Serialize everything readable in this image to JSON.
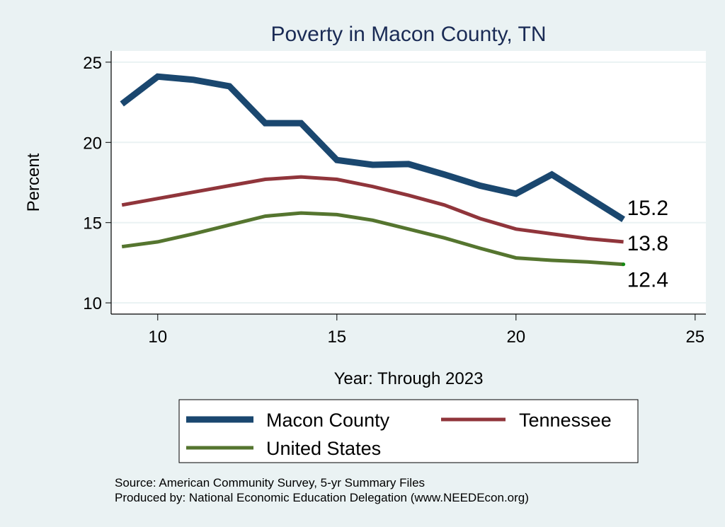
{
  "chart_data": {
    "type": "line",
    "title": "Poverty in Macon County, TN",
    "xlabel": "Year: Through 2023",
    "ylabel": "Percent",
    "xlim": [
      8.7,
      25.3
    ],
    "ylim": [
      9.3,
      25.7
    ],
    "xticks": [
      10,
      15,
      20,
      25
    ],
    "yticks": [
      10,
      15,
      20,
      25
    ],
    "grid": true,
    "legend_position": "bottom",
    "x": [
      9,
      10,
      11,
      12,
      13,
      14,
      15,
      16,
      17,
      18,
      19,
      20,
      21,
      22,
      23
    ],
    "series": [
      {
        "name": "Macon County",
        "color": "#1a476f",
        "values": [
          22.4,
          24.1,
          23.9,
          23.5,
          21.2,
          21.2,
          18.9,
          18.6,
          18.65,
          18.0,
          17.3,
          16.8,
          18.0,
          16.6,
          15.2
        ],
        "end_label": "15.2"
      },
      {
        "name": "Tennessee",
        "color": "#90353b",
        "values": [
          16.1,
          16.5,
          16.9,
          17.3,
          17.7,
          17.85,
          17.7,
          17.25,
          16.7,
          16.1,
          15.25,
          14.6,
          14.3,
          14.0,
          13.8
        ],
        "end_label": "13.8"
      },
      {
        "name": "United States",
        "color": "#55752f",
        "values": [
          13.5,
          13.8,
          14.3,
          14.85,
          15.4,
          15.6,
          15.5,
          15.15,
          14.6,
          14.05,
          13.4,
          12.8,
          12.65,
          12.55,
          12.4
        ],
        "end_label": "12.4"
      }
    ],
    "notes": [
      "Source: American Community Survey, 5-yr Summary Files",
      "Produced by: National Economic Education Delegation (www.NEEDEcon.org)"
    ]
  }
}
